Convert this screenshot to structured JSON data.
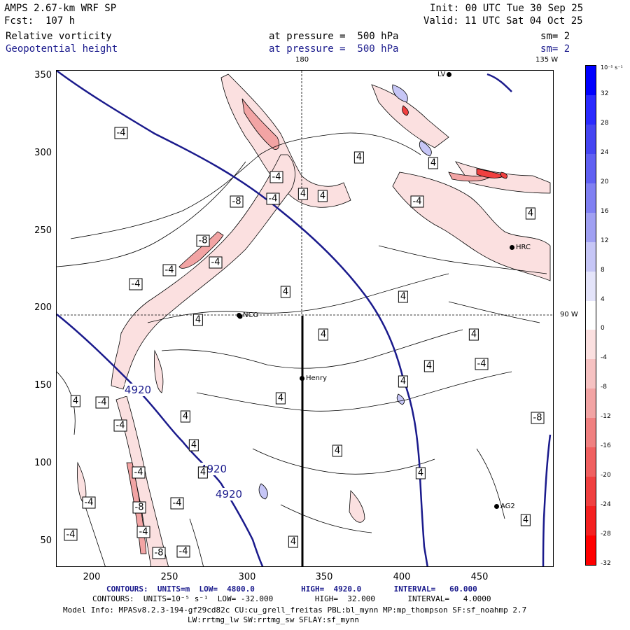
{
  "header": {
    "model": "AMPS 2.67-km WRF SP",
    "forecast": "Fcst:  107 h",
    "init": "Init: 00 UTC Tue 30 Sep 25",
    "valid": "Valid: 11 UTC Sat 04 Oct 25",
    "field1_name": "Relative vorticity",
    "field1_level": "at pressure =  500 hPa",
    "field1_sm": "sm= 2",
    "field2_name": "Geopotential height",
    "field2_level": "at pressure =  500 hPa",
    "field2_sm": "sm= 2"
  },
  "map_labels": {
    "lon_180": "180",
    "lon_135w": "135 W",
    "lat_90w": "90 W"
  },
  "axes": {
    "x_ticks": [
      "200",
      "250",
      "300",
      "350",
      "400",
      "450"
    ],
    "y_ticks": [
      "350",
      "300",
      "250",
      "200",
      "150",
      "100",
      "50"
    ]
  },
  "stations": [
    {
      "name": "NCO"
    },
    {
      "name": "Henry"
    },
    {
      "name": "HRC"
    },
    {
      "name": "AG2"
    },
    {
      "name": "LV"
    }
  ],
  "contour_labels": {
    "height": [
      "4920",
      "4920",
      "4920"
    ],
    "vort": [
      "-4",
      "-4",
      "-4",
      "-8",
      "-8",
      "-4",
      "-4",
      "-4",
      "-4",
      "4",
      "4",
      "4",
      "4",
      "4",
      "4",
      "4",
      "4",
      "4",
      "4",
      "4",
      "4",
      "4",
      "-4",
      "-8",
      "-4",
      "-4",
      "-4",
      "-8",
      "-4",
      "-8",
      "-4",
      "-4",
      "4",
      "4",
      "4",
      "-4",
      "-4",
      "4",
      "4",
      "4",
      "4",
      "4"
    ]
  },
  "colorbar": {
    "units": "10⁻⁵ s⁻¹",
    "labels": [
      "32",
      "28",
      "24",
      "20",
      "16",
      "12",
      "8",
      "4",
      "0",
      "-4",
      "-8",
      "-12",
      "-16",
      "-20",
      "-24",
      "-28",
      "-32"
    ],
    "colors": [
      "#0000ff",
      "#2a2aff",
      "#4545f2",
      "#6060f2",
      "#8080f2",
      "#a0a0f2",
      "#c6c6f6",
      "#e4e4fa",
      "#ffffff",
      "#fbe0e0",
      "#f6c2c2",
      "#f2a4a4",
      "#f08080",
      "#f06060",
      "#f04040",
      "#f42020",
      "#ff0000"
    ]
  },
  "footer": {
    "contours1": "CONTOURS:  UNITS=m  LOW=  4800.0          HIGH=  4920.0       INTERVAL=   60.000",
    "contours2": "CONTOURS:  UNITS=10⁻⁵ s⁻¹  LOW= -32.000         HIGH=  32.000       INTERVAL=   4.0000",
    "model_info": "Model Info: MPASv8.2.3-194-gf29cd82c CU:cu_grell_freitas PBL:bl_mynn MP:mp_thompson SF:sf_noahmp 2.7",
    "model_info2": "LW:rrtmg_lw SW:rrtmg_sw SFLAY:sf_mynn"
  }
}
